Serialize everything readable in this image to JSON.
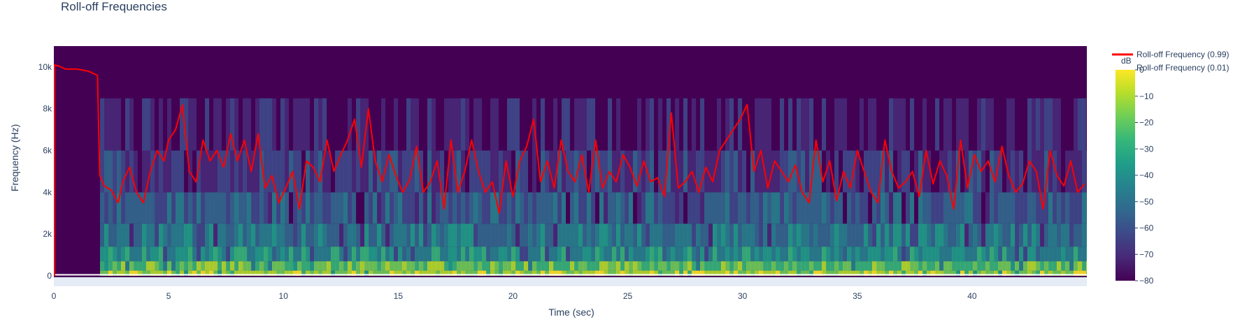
{
  "chart_data": {
    "type": "heatmap",
    "title": "Roll-off Frequencies",
    "xlabel": "Time (sec)",
    "ylabel": "Frequency (Hz)",
    "xlim": [
      0,
      45
    ],
    "ylim": [
      -500,
      11000
    ],
    "x_ticks": [
      0,
      5,
      10,
      15,
      20,
      25,
      30,
      35,
      40
    ],
    "x_tick_labels": [
      "0",
      "5",
      "10",
      "15",
      "20",
      "25",
      "30",
      "35",
      "40"
    ],
    "y_ticks": [
      0,
      2000,
      4000,
      6000,
      8000,
      10000
    ],
    "y_tick_labels": [
      "0",
      "2k",
      "4k",
      "6k",
      "8k",
      "10k"
    ],
    "colorbar": {
      "title": "dB",
      "range": [
        -80,
        0
      ],
      "ticks": [
        0,
        -10,
        -20,
        -30,
        -40,
        -50,
        -60,
        -70,
        -80
      ],
      "tick_labels": [
        "0",
        "−10",
        "−20",
        "−30",
        "−40",
        "−50",
        "−60",
        "−70",
        "−80"
      ],
      "colorscale": [
        "#440154",
        "#482878",
        "#3e4989",
        "#31688e",
        "#26828e",
        "#1f9e89",
        "#35b779",
        "#6ece58",
        "#b5de2b",
        "#fde725"
      ]
    },
    "series": [
      {
        "name": "Roll-off Frequency (0.99)",
        "color": "#ff0000",
        "x": [
          0,
          0.2,
          0.5,
          1.0,
          1.5,
          1.9,
          2.0,
          2.2,
          2.5,
          2.8,
          3.0,
          3.3,
          3.6,
          3.9,
          4.2,
          4.5,
          4.8,
          5.0,
          5.3,
          5.6,
          5.9,
          6.2,
          6.5,
          6.8,
          7.1,
          7.4,
          7.7,
          8.0,
          8.3,
          8.6,
          8.9,
          9.2,
          9.5,
          9.8,
          10.1,
          10.4,
          10.7,
          11.0,
          11.3,
          11.6,
          11.9,
          12.2,
          12.5,
          12.8,
          13.1,
          13.4,
          13.7,
          14.0,
          14.3,
          14.6,
          14.9,
          15.2,
          15.5,
          15.8,
          16.1,
          16.4,
          16.7,
          17.0,
          17.3,
          17.6,
          17.9,
          18.2,
          18.5,
          18.8,
          19.1,
          19.4,
          19.7,
          20.0,
          20.3,
          20.6,
          20.9,
          21.2,
          21.5,
          21.8,
          22.1,
          22.4,
          22.7,
          23.0,
          23.3,
          23.6,
          23.9,
          24.2,
          24.5,
          24.8,
          25.1,
          25.4,
          25.7,
          26.0,
          26.3,
          26.6,
          26.9,
          27.2,
          27.5,
          27.8,
          28.1,
          28.4,
          28.7,
          29.0,
          29.3,
          29.6,
          29.9,
          30.2,
          30.5,
          30.8,
          31.1,
          31.4,
          31.7,
          32.0,
          32.3,
          32.6,
          32.9,
          33.2,
          33.5,
          33.8,
          34.1,
          34.4,
          34.7,
          35.0,
          35.3,
          35.6,
          35.9,
          36.2,
          36.5,
          36.8,
          37.1,
          37.4,
          37.7,
          38.0,
          38.3,
          38.6,
          38.9,
          39.2,
          39.5,
          39.8,
          40.1,
          40.4,
          40.7,
          41.0,
          41.3,
          41.6,
          41.9,
          42.2,
          42.5,
          42.8,
          43.1,
          43.4,
          43.7,
          44.0,
          44.3,
          44.6,
          44.9
        ],
        "y": [
          10100,
          10050,
          9900,
          9900,
          9800,
          9600,
          4800,
          4300,
          4100,
          3500,
          4500,
          5200,
          4000,
          3500,
          5000,
          6000,
          5500,
          6500,
          7000,
          8200,
          5000,
          4500,
          6500,
          5500,
          6000,
          5200,
          6800,
          5500,
          6500,
          5000,
          6800,
          4200,
          4800,
          3500,
          4200,
          5000,
          3200,
          5500,
          5200,
          4500,
          6500,
          5000,
          5800,
          6500,
          7500,
          5200,
          8000,
          5500,
          4500,
          5800,
          4800,
          4000,
          4600,
          6200,
          4000,
          4500,
          5500,
          3200,
          6500,
          4000,
          5000,
          6500,
          5000,
          4000,
          4500,
          3000,
          5500,
          3800,
          5500,
          6200,
          7500,
          4500,
          5500,
          4200,
          6500,
          5000,
          4500,
          5800,
          4000,
          6500,
          4200,
          5000,
          4500,
          5800,
          5200,
          4300,
          5500,
          4500,
          4700,
          3800,
          7800,
          4200,
          4500,
          5000,
          4000,
          5200,
          4500,
          6000,
          6500,
          7000,
          7500,
          8200,
          5000,
          6000,
          4200,
          5500,
          5000,
          4500,
          5300,
          4000,
          3500,
          6500,
          4500,
          5500,
          3600,
          5000,
          4200,
          6000,
          5000,
          4000,
          3500,
          6500,
          5000,
          4200,
          4500,
          5000,
          3800,
          6000,
          4400,
          5500,
          4800,
          3200,
          6500,
          4200,
          5800,
          5000,
          5500,
          4500,
          6200,
          4800,
          4000,
          4400,
          5500,
          5000,
          3200,
          6000,
          4800,
          4300,
          5500,
          4000,
          4400
        ]
      },
      {
        "name": "Roll-off Frequency (0.01)",
        "color": "#ffffff",
        "x": [
          0,
          45
        ],
        "y": [
          50,
          50
        ]
      }
    ]
  }
}
